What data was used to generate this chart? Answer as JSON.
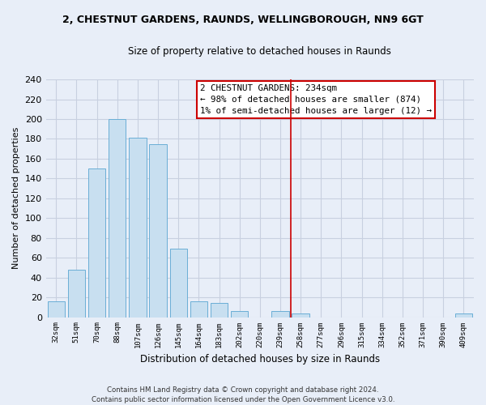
{
  "title": "2, CHESTNUT GARDENS, RAUNDS, WELLINGBOROUGH, NN9 6GT",
  "subtitle": "Size of property relative to detached houses in Raunds",
  "xlabel": "Distribution of detached houses by size in Raunds",
  "ylabel": "Number of detached properties",
  "bar_color": "#c8dff0",
  "bar_edge_color": "#6aaed6",
  "categories": [
    "32sqm",
    "51sqm",
    "70sqm",
    "88sqm",
    "107sqm",
    "126sqm",
    "145sqm",
    "164sqm",
    "183sqm",
    "202sqm",
    "220sqm",
    "239sqm",
    "258sqm",
    "277sqm",
    "296sqm",
    "315sqm",
    "334sqm",
    "352sqm",
    "371sqm",
    "390sqm",
    "409sqm"
  ],
  "values": [
    16,
    48,
    150,
    200,
    181,
    175,
    69,
    16,
    14,
    6,
    0,
    6,
    4,
    0,
    0,
    0,
    0,
    0,
    0,
    0,
    4
  ],
  "ylim": [
    0,
    240
  ],
  "yticks": [
    0,
    20,
    40,
    60,
    80,
    100,
    120,
    140,
    160,
    180,
    200,
    220,
    240
  ],
  "vline_x": 11.5,
  "vline_color": "#cc0000",
  "annotation_title": "2 CHESTNUT GARDENS: 234sqm",
  "annotation_line1": "← 98% of detached houses are smaller (874)",
  "annotation_line2": "1% of semi-detached houses are larger (12) →",
  "footer1": "Contains HM Land Registry data © Crown copyright and database right 2024.",
  "footer2": "Contains public sector information licensed under the Open Government Licence v3.0.",
  "background_color": "#e8eef8",
  "plot_bg_color": "#e8eef8",
  "grid_color": "#c8d0e0"
}
